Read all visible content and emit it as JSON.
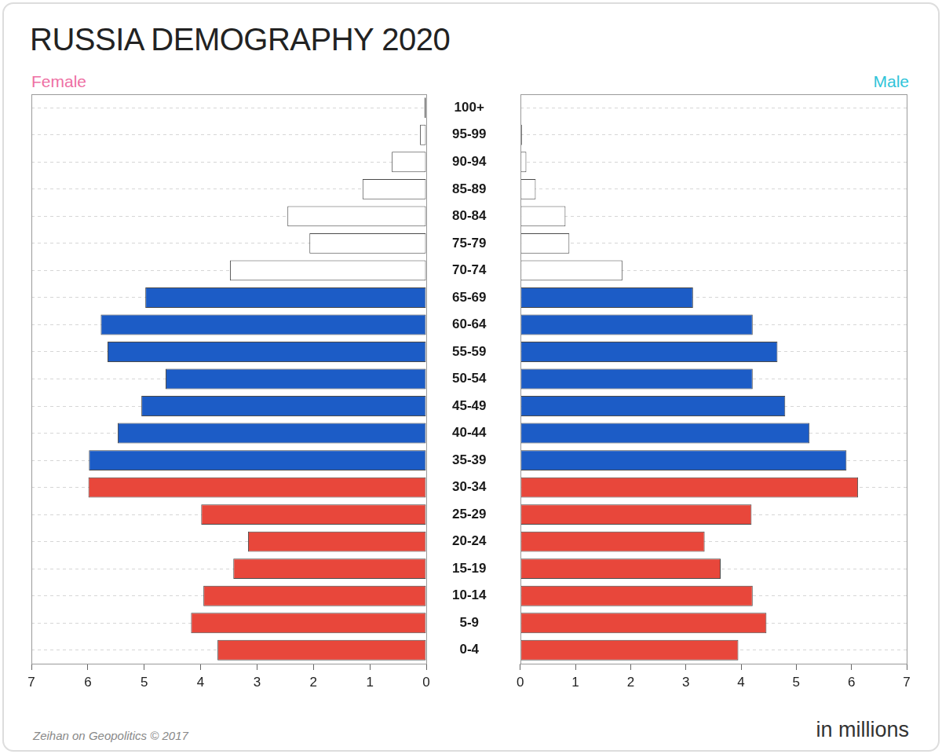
{
  "chart_data": {
    "type": "bar",
    "title": "RUSSIA DEMOGRAPHY 2020",
    "orientation": "horizontal",
    "categories": [
      "100+",
      "95-99",
      "90-94",
      "85-89",
      "80-84",
      "75-79",
      "70-74",
      "65-69",
      "60-64",
      "55-59",
      "50-54",
      "45-49",
      "40-44",
      "35-39",
      "30-34",
      "25-29",
      "20-24",
      "15-19",
      "10-14",
      "5-9",
      "0-4"
    ],
    "series": [
      {
        "name": "Female",
        "values": [
          0.03,
          0.11,
          0.61,
          1.13,
          2.46,
          2.07,
          3.48,
          4.98,
          5.77,
          5.65,
          4.62,
          5.05,
          5.47,
          5.98,
          5.99,
          3.99,
          3.16,
          3.42,
          3.95,
          4.17,
          3.7
        ],
        "colors": [
          "#ffffff",
          "#ffffff",
          "#ffffff",
          "#ffffff",
          "#ffffff",
          "#ffffff",
          "#ffffff",
          "#1c5cc6",
          "#1c5cc6",
          "#1c5cc6",
          "#1c5cc6",
          "#1c5cc6",
          "#1c5cc6",
          "#1c5cc6",
          "#e8473b",
          "#e8473b",
          "#e8473b",
          "#e8473b",
          "#e8473b",
          "#e8473b",
          "#e8473b"
        ]
      },
      {
        "name": "Male",
        "values": [
          0.01,
          0.03,
          0.11,
          0.28,
          0.82,
          0.89,
          1.85,
          3.13,
          4.21,
          4.66,
          4.21,
          4.8,
          5.24,
          5.91,
          6.12,
          4.19,
          3.34,
          3.63,
          4.21,
          4.46,
          3.95
        ],
        "colors": [
          "#ffffff",
          "#ffffff",
          "#ffffff",
          "#ffffff",
          "#ffffff",
          "#ffffff",
          "#ffffff",
          "#1c5cc6",
          "#1c5cc6",
          "#1c5cc6",
          "#1c5cc6",
          "#1c5cc6",
          "#1c5cc6",
          "#1c5cc6",
          "#e8473b",
          "#e8473b",
          "#e8473b",
          "#e8473b",
          "#e8473b",
          "#e8473b",
          "#e8473b"
        ]
      }
    ],
    "xlim": [
      0,
      7
    ],
    "xticks": [
      0,
      1,
      2,
      3,
      4,
      5,
      6,
      7
    ],
    "xlabel": "in millions",
    "annotations": [
      "Zeihan on Geopolitics © 2017"
    ],
    "grid": true
  }
}
